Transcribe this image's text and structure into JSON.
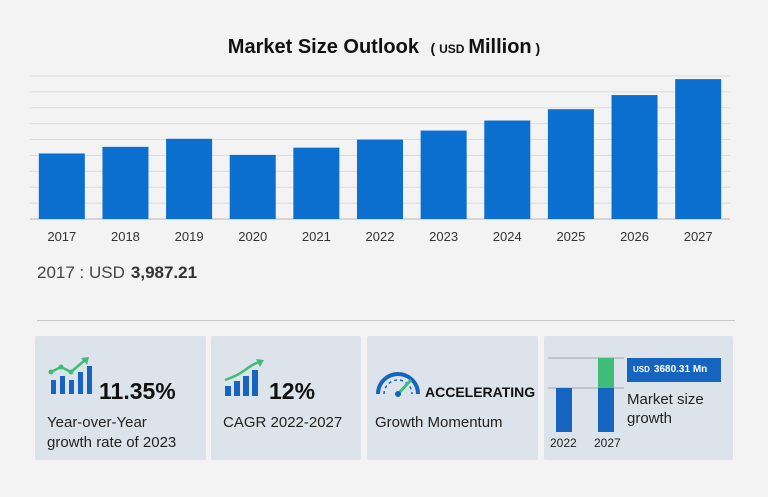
{
  "title": {
    "main": "Market Size Outlook",
    "open": "(",
    "unit_prefix": "USD",
    "unit": "Million",
    "close": ")"
  },
  "colors": {
    "bar": "#0b6fd0",
    "accent_green": "#3dbd78",
    "card_bg": "#dde3ea",
    "badge_bg": "#1565c0"
  },
  "chart_data": {
    "type": "bar",
    "categories": [
      "2017",
      "2018",
      "2019",
      "2020",
      "2021",
      "2022",
      "2023",
      "2024",
      "2025",
      "2026",
      "2027"
    ],
    "values": [
      3987.21,
      4390,
      4880,
      3900,
      4340,
      4830,
      5380,
      5990,
      6680,
      7540,
      8510
    ],
    "title": "Market Size Outlook",
    "xlabel": "",
    "ylabel": "",
    "ylim": [
      0,
      8700
    ],
    "grid": true
  },
  "first_year": {
    "label": "2017 : USD",
    "value": "3,987.21"
  },
  "cards": {
    "yoy": {
      "value": "11.35%",
      "line1": "Year-over-Year",
      "line2": "growth rate of 2023",
      "icon": "growth-bar-chart-icon"
    },
    "cagr": {
      "value": "12%",
      "line1": "CAGR  2022-2027",
      "icon": "trend-bar-chart-icon"
    },
    "momentum": {
      "value": "ACCELERATING",
      "line1": "Growth Momentum",
      "icon": "speedometer-icon"
    },
    "market_growth": {
      "badge_prefix": "USD",
      "badge_value": "3680.31 Mn",
      "line1": "Market size",
      "line2": "growth",
      "year_start": "2022",
      "year_end": "2027"
    }
  }
}
